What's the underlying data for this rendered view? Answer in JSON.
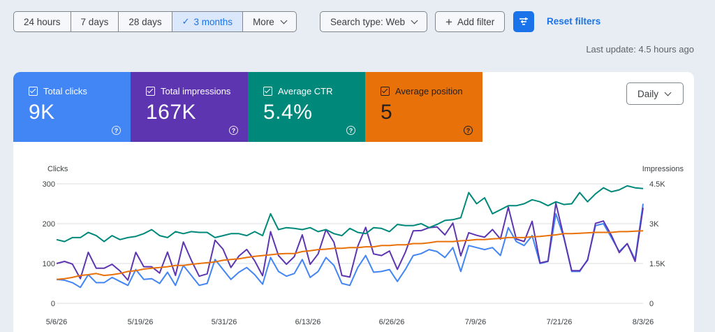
{
  "filters": {
    "date_ranges": [
      {
        "label": "24 hours",
        "active": false
      },
      {
        "label": "7 days",
        "active": false
      },
      {
        "label": "28 days",
        "active": false
      },
      {
        "label": "3 months",
        "active": true
      },
      {
        "label": "More",
        "active": false
      }
    ],
    "search_type": "Search type: Web",
    "add_filter": "Add filter",
    "reset": "Reset filters",
    "last_update": "Last update: 4.5 hours ago"
  },
  "metrics": {
    "clicks": {
      "label": "Total clicks",
      "value": "9K",
      "color": "#4285f4"
    },
    "impressions": {
      "label": "Total impressions",
      "value": "167K",
      "color": "#5e35b1"
    },
    "ctr": {
      "label": "Average CTR",
      "value": "5.4%",
      "color": "#00897b"
    },
    "position": {
      "label": "Average position",
      "value": "5",
      "color": "#e8710a"
    }
  },
  "granularity": "Daily",
  "chart_data": {
    "type": "line",
    "xlabel": "",
    "ylabel_left": "Clicks",
    "ylabel_right": "Impressions",
    "left_ticks": [
      "0",
      "100",
      "200",
      "300"
    ],
    "right_ticks": [
      "0",
      "1.5K",
      "3K",
      "4.5K"
    ],
    "ylim_left": [
      0,
      300
    ],
    "ylim_right": [
      0,
      4500
    ],
    "x_ticks": [
      "5/6/26",
      "5/19/26",
      "5/31/26",
      "6/13/26",
      "6/26/26",
      "7/9/26",
      "7/21/26",
      "8/3/26"
    ],
    "series": [
      {
        "color": "#4285f4",
        "axis": "left",
        "values": [
          60,
          58,
          52,
          40,
          72,
          52,
          52,
          65,
          55,
          45,
          85,
          60,
          62,
          50,
          78,
          45,
          95,
          70,
          45,
          50,
          110,
          85,
          60,
          78,
          90,
          72,
          48,
          115,
          80,
          68,
          75,
          110,
          65,
          80,
          115,
          95,
          50,
          45,
          90,
          120,
          78,
          80,
          85,
          55,
          85,
          120,
          125,
          135,
          130,
          115,
          140,
          80,
          145,
          140,
          135,
          140,
          120,
          190,
          155,
          145,
          170,
          100,
          105,
          225,
          165,
          80,
          80,
          110,
          195,
          200,
          165,
          130,
          150,
          110,
          250
        ]
      },
      {
        "color": "#5e35b1",
        "axis": "left",
        "values": [
          1500,
          1580,
          1480,
          930,
          1920,
          1320,
          1320,
          1470,
          1220,
          870,
          1920,
          1380,
          1380,
          1140,
          1930,
          1050,
          2310,
          1620,
          1020,
          1110,
          2380,
          2040,
          1350,
          1780,
          2030,
          1600,
          1040,
          2700,
          1800,
          1470,
          1760,
          2580,
          1470,
          1860,
          2780,
          2300,
          1050,
          990,
          2150,
          2860,
          1860,
          1800,
          1970,
          1280,
          1920,
          2730,
          2740,
          2850,
          2880,
          2580,
          3020,
          1790,
          2660,
          2560,
          2490,
          2780,
          2420,
          3620,
          2420,
          2330,
          3090,
          1520,
          1590,
          3770,
          2500,
          1230,
          1230,
          1620,
          3010,
          3100,
          2560,
          1910,
          2250,
          1580,
          3600
        ]
      },
      {
        "color": "#00897b",
        "axis": "left",
        "values": [
          160,
          155,
          165,
          165,
          178,
          170,
          155,
          170,
          160,
          165,
          168,
          175,
          185,
          170,
          165,
          180,
          175,
          180,
          178,
          178,
          165,
          170,
          175,
          175,
          170,
          180,
          170,
          225,
          185,
          190,
          188,
          185,
          190,
          180,
          185,
          175,
          170,
          188,
          178,
          175,
          190,
          188,
          180,
          198,
          195,
          195,
          200,
          190,
          198,
          208,
          210,
          215,
          278,
          250,
          265,
          225,
          235,
          245,
          245,
          250,
          260,
          255,
          245,
          255,
          248,
          250,
          278,
          255,
          275,
          290,
          280,
          285,
          295,
          290,
          288
        ]
      },
      {
        "color": "#e8710a",
        "axis": "left",
        "values": [
          60,
          62,
          65,
          70,
          72,
          75,
          70,
          72,
          75,
          80,
          82,
          86,
          88,
          90,
          92,
          95,
          95,
          98,
          100,
          102,
          104,
          108,
          110,
          112,
          115,
          118,
          120,
          122,
          124,
          125,
          125,
          130,
          132,
          135,
          136,
          138,
          138,
          140,
          140,
          142,
          142,
          145,
          145,
          147,
          147,
          150,
          150,
          152,
          155,
          155,
          155,
          157,
          158,
          160,
          160,
          162,
          163,
          165,
          165,
          165,
          167,
          168,
          170,
          172,
          175,
          175,
          176,
          177,
          178,
          178,
          178,
          180,
          180,
          181,
          182
        ]
      }
    ]
  }
}
